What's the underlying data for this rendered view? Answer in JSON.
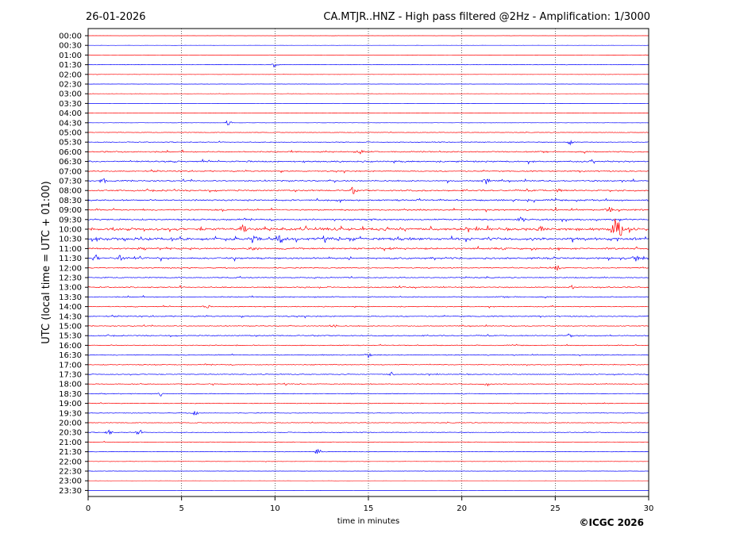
{
  "header": {
    "date": "26-01-2026",
    "title": "CA.MTJR..HNZ - High pass filtered @2Hz - Amplification: 1/3000"
  },
  "footer": {
    "copyright": "©ICGC 2026"
  },
  "chart_data": {
    "type": "line",
    "title": "CA.MTJR..HNZ - High pass filtered @2Hz - Amplification: 1/3000",
    "xlabel": "time in minutes",
    "ylabel": "UTC (local time = UTC + 01:00)",
    "xlim": [
      0,
      30
    ],
    "x_ticks": [
      0,
      5,
      10,
      15,
      20,
      25,
      30
    ],
    "grid": "vertical dotted at 5-minute intervals",
    "colors": {
      "odd_trace": "#ff0000",
      "even_trace": "#0000ff",
      "axes": "#000000"
    },
    "rows": [
      "00:00",
      "00:30",
      "01:00",
      "01:30",
      "02:00",
      "02:30",
      "03:00",
      "03:30",
      "04:00",
      "04:30",
      "05:00",
      "05:30",
      "06:00",
      "06:30",
      "07:00",
      "07:30",
      "08:00",
      "08:30",
      "09:00",
      "09:30",
      "10:00",
      "10:30",
      "11:00",
      "11:30",
      "12:00",
      "12:30",
      "13:00",
      "13:30",
      "14:00",
      "14:30",
      "15:00",
      "15:30",
      "16:00",
      "16:30",
      "17:00",
      "17:30",
      "18:00",
      "18:30",
      "19:00",
      "19:30",
      "20:00",
      "20:30",
      "21:00",
      "21:30",
      "22:00",
      "22:30",
      "23:00",
      "23:30"
    ],
    "activity": [
      0.05,
      0.05,
      0.1,
      0.15,
      0.1,
      0.08,
      0.1,
      0.08,
      0.08,
      0.1,
      0.2,
      0.25,
      0.45,
      0.5,
      0.4,
      0.45,
      0.5,
      0.5,
      0.5,
      0.5,
      0.9,
      0.9,
      0.6,
      0.6,
      0.35,
      0.35,
      0.4,
      0.35,
      0.3,
      0.35,
      0.3,
      0.35,
      0.3,
      0.3,
      0.3,
      0.3,
      0.3,
      0.25,
      0.25,
      0.2,
      0.25,
      0.25,
      0.2,
      0.15,
      0.12,
      0.1,
      0.05,
      0.05
    ],
    "events": [
      {
        "row": "01:30",
        "minute": 10.0,
        "amp": 0.6
      },
      {
        "row": "04:30",
        "minute": 7.5,
        "amp": 0.6
      },
      {
        "row": "05:30",
        "minute": 25.8,
        "amp": 0.5
      },
      {
        "row": "06:00",
        "minute": 14.6,
        "amp": 0.5
      },
      {
        "row": "07:30",
        "minute": 0.8,
        "amp": 0.5
      },
      {
        "row": "07:30",
        "minute": 21.3,
        "amp": 0.5
      },
      {
        "row": "08:00",
        "minute": 14.2,
        "amp": 0.7
      },
      {
        "row": "08:00",
        "minute": 25.1,
        "amp": 0.6
      },
      {
        "row": "09:00",
        "minute": 27.9,
        "amp": 0.6
      },
      {
        "row": "09:30",
        "minute": 23.2,
        "amp": 0.6
      },
      {
        "row": "10:00",
        "minute": 28.2,
        "amp": 1.6
      },
      {
        "row": "10:00",
        "minute": 28.5,
        "amp": 1.6
      },
      {
        "row": "10:00",
        "minute": 8.3,
        "amp": 0.8
      },
      {
        "row": "10:00",
        "minute": 24.3,
        "amp": 0.7
      },
      {
        "row": "10:30",
        "minute": 10.3,
        "amp": 0.8
      },
      {
        "row": "10:30",
        "minute": 9.0,
        "amp": 0.6
      },
      {
        "row": "11:00",
        "minute": 8.9,
        "amp": 0.6
      },
      {
        "row": "11:30",
        "minute": 0.4,
        "amp": 0.7
      },
      {
        "row": "11:30",
        "minute": 1.7,
        "amp": 0.6
      },
      {
        "row": "11:30",
        "minute": 29.3,
        "amp": 0.6
      },
      {
        "row": "12:00",
        "minute": 25.1,
        "amp": 0.5
      },
      {
        "row": "13:00",
        "minute": 25.9,
        "amp": 0.5
      },
      {
        "row": "14:00",
        "minute": 6.3,
        "amp": 0.5
      },
      {
        "row": "15:00",
        "minute": 13.1,
        "amp": 0.5
      },
      {
        "row": "15:30",
        "minute": 25.8,
        "amp": 0.5
      },
      {
        "row": "16:30",
        "minute": 15.0,
        "amp": 0.5
      },
      {
        "row": "17:30",
        "minute": 16.2,
        "amp": 0.5
      },
      {
        "row": "18:00",
        "minute": 21.3,
        "amp": 0.5
      },
      {
        "row": "18:30",
        "minute": 3.9,
        "amp": 0.5
      },
      {
        "row": "19:30",
        "minute": 5.7,
        "amp": 0.6
      },
      {
        "row": "20:30",
        "minute": 1.1,
        "amp": 0.5
      },
      {
        "row": "20:30",
        "minute": 2.7,
        "amp": 0.5
      },
      {
        "row": "21:30",
        "minute": 12.3,
        "amp": 0.6
      }
    ]
  }
}
